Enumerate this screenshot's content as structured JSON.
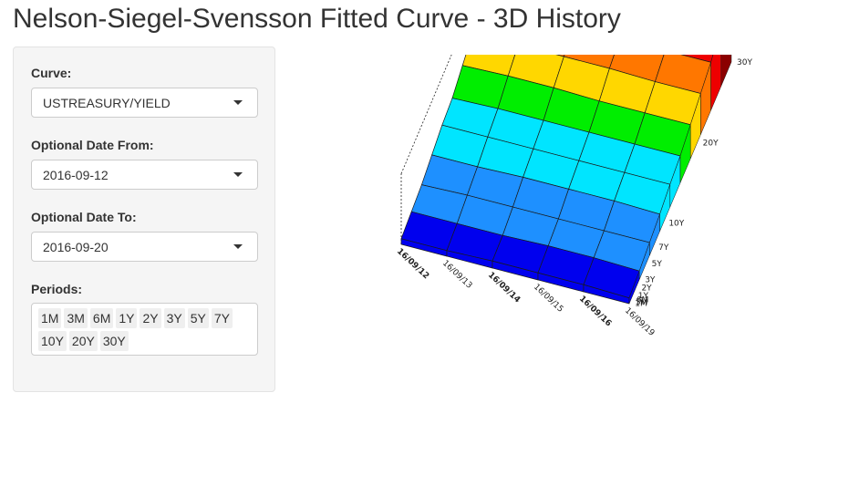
{
  "title": "Nelson-Siegel-Svensson Fitted Curve - 3D History",
  "sidebar": {
    "curve": {
      "label": "Curve:",
      "value": "USTREASURY/YIELD"
    },
    "date_from": {
      "label": "Optional Date From:",
      "value": "2016-09-12"
    },
    "date_to": {
      "label": "Optional Date To:",
      "value": "2016-09-20"
    },
    "periods": {
      "label": "Periods:",
      "tags": [
        "1M",
        "3M",
        "6M",
        "1Y",
        "2Y",
        "3Y",
        "5Y",
        "7Y",
        "10Y",
        "20Y",
        "30Y"
      ]
    }
  },
  "chart_data": {
    "type": "surface",
    "x": [
      "16/09/12",
      "16/09/13",
      "16/09/14",
      "16/09/15",
      "16/09/16",
      "16/09/19"
    ],
    "y": [
      "1M",
      "3M",
      "6M",
      "1Y",
      "2Y",
      "3Y",
      "5Y",
      "7Y",
      "10Y",
      "20Y",
      "30Y"
    ],
    "y_tick_labels": [
      "1M",
      "3M",
      "6M",
      "1Y",
      "2Y",
      "3Y",
      "5Y",
      "7Y",
      "10Y",
      "20Y",
      "30Y"
    ],
    "z": [
      [
        0.2,
        0.3,
        0.4,
        0.6,
        0.8,
        0.9,
        1.2,
        1.5,
        1.7,
        2.1,
        2.4
      ],
      [
        0.2,
        0.3,
        0.45,
        0.6,
        0.8,
        0.95,
        1.25,
        1.5,
        1.7,
        2.1,
        2.45
      ],
      [
        0.25,
        0.3,
        0.45,
        0.65,
        0.8,
        0.95,
        1.25,
        1.5,
        1.7,
        2.15,
        2.45
      ],
      [
        0.25,
        0.35,
        0.45,
        0.65,
        0.8,
        0.95,
        1.2,
        1.5,
        1.7,
        2.1,
        2.4
      ],
      [
        0.25,
        0.35,
        0.45,
        0.65,
        0.8,
        0.95,
        1.2,
        1.45,
        1.7,
        2.1,
        2.4
      ],
      [
        0.2,
        0.3,
        0.45,
        0.6,
        0.8,
        0.95,
        1.2,
        1.45,
        1.7,
        2.1,
        2.4
      ]
    ],
    "colorscale": [
      "#0000ee",
      "#1e90ff",
      "#00e5ff",
      "#00ee00",
      "#ffd700",
      "#ff7700",
      "#ee0000",
      "#8b0000"
    ]
  }
}
